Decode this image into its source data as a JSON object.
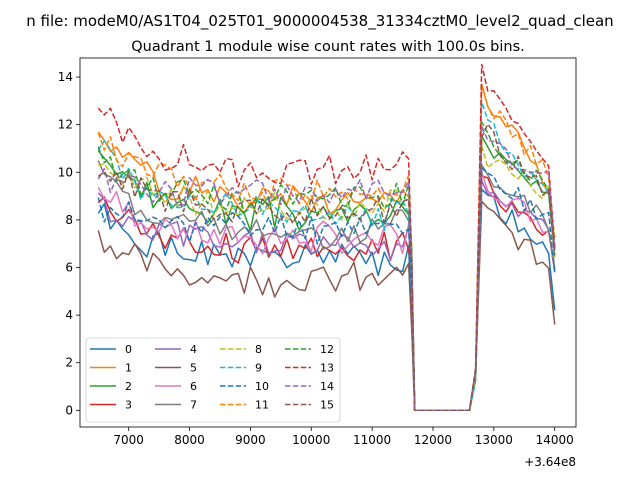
{
  "chart_data": {
    "type": "line",
    "suptitle": "n file: modeM0/AS1T04_025T01_9000004538_31334cztM0_level2_quad_clean",
    "title": "Quadrant 1 module wise count rates with 100.0s bins.",
    "xlabel": "",
    "ylabel": "",
    "x_offset_label": "+3.64e8",
    "xlim": [
      6200,
      14350
    ],
    "ylim": [
      -0.7,
      14.8
    ],
    "xticks": [
      7000,
      8000,
      9000,
      10000,
      11000,
      12000,
      13000,
      14000
    ],
    "yticks": [
      0,
      2,
      4,
      6,
      8,
      10,
      12,
      14
    ],
    "x_start": 6500,
    "x_step": 100,
    "legend_location": "lower-left",
    "legend_columns": 4,
    "colors": {
      "c0": "#1f77b4",
      "c1": "#ff7f0e",
      "c2": "#2ca02c",
      "c3": "#d62728",
      "c4": "#9467bd",
      "c5": "#8c564b",
      "c6": "#e377c2",
      "c7": "#7f7f7f",
      "c8": "#bcbd22",
      "c9": "#17becf"
    },
    "series": [
      {
        "name": "0",
        "color": "#1f77b4",
        "dashed": false,
        "level": 6.3,
        "start": 8.3,
        "post": 9.1,
        "end": 4.2,
        "seed": 1
      },
      {
        "name": "1",
        "color": "#ff7f0e",
        "dashed": false,
        "level": 8.9,
        "start": 12.0,
        "post": 13.5,
        "end": 6.8,
        "seed": 2
      },
      {
        "name": "2",
        "color": "#2ca02c",
        "dashed": false,
        "level": 8.2,
        "start": 11.0,
        "post": 11.3,
        "end": 6.5,
        "seed": 3
      },
      {
        "name": "3",
        "color": "#d62728",
        "dashed": false,
        "level": 6.8,
        "start": 9.1,
        "post": 9.6,
        "end": 5.8,
        "seed": 4
      },
      {
        "name": "4",
        "color": "#9467bd",
        "dashed": false,
        "level": 7.0,
        "start": 8.7,
        "post": 9.4,
        "end": 5.9,
        "seed": 5
      },
      {
        "name": "5",
        "color": "#8c564b",
        "dashed": false,
        "level": 5.5,
        "start": 7.4,
        "post": 8.5,
        "end": 3.6,
        "seed": 6
      },
      {
        "name": "6",
        "color": "#e377c2",
        "dashed": false,
        "level": 7.2,
        "start": 9.5,
        "post": 9.7,
        "end": 5.9,
        "seed": 7
      },
      {
        "name": "7",
        "color": "#7f7f7f",
        "dashed": false,
        "level": 7.4,
        "start": 10.4,
        "post": 10.0,
        "end": 6.0,
        "seed": 8
      },
      {
        "name": "8",
        "color": "#bcbd22",
        "dashed": true,
        "level": 8.5,
        "start": 10.5,
        "post": 10.8,
        "end": 6.4,
        "seed": 9
      },
      {
        "name": "9",
        "color": "#17becf",
        "dashed": true,
        "level": 8.3,
        "start": 11.4,
        "post": 12.6,
        "end": 7.0,
        "seed": 10
      },
      {
        "name": "10",
        "color": "#1f77b4",
        "dashed": true,
        "level": 7.7,
        "start": 8.6,
        "post": 9.8,
        "end": 5.8,
        "seed": 11
      },
      {
        "name": "11",
        "color": "#ff7f0e",
        "dashed": true,
        "level": 9.2,
        "start": 11.6,
        "post": 13.3,
        "end": 7.2,
        "seed": 12
      },
      {
        "name": "12",
        "color": "#2ca02c",
        "dashed": true,
        "level": 8.9,
        "start": 10.8,
        "post": 11.7,
        "end": 6.7,
        "seed": 13
      },
      {
        "name": "13",
        "color": "#d62728",
        "dashed": true,
        "level": 10.0,
        "start": 12.7,
        "post": 14.1,
        "end": 6.8,
        "seed": 14
      },
      {
        "name": "14",
        "color": "#9467bd",
        "dashed": true,
        "level": 9.1,
        "start": 10.0,
        "post": 11.5,
        "end": 6.7,
        "seed": 15
      },
      {
        "name": "15",
        "color": "#8c564b",
        "dashed": true,
        "level": 8.4,
        "start": 10.4,
        "post": 11.9,
        "end": 6.5,
        "seed": 16
      }
    ],
    "segments": {
      "active1": [
        6500,
        11600
      ],
      "dip_to": 11700,
      "gap": [
        11700,
        12600
      ],
      "ramp_up": 12700,
      "active2": [
        12800,
        13900
      ],
      "end_x": 14000
    }
  }
}
